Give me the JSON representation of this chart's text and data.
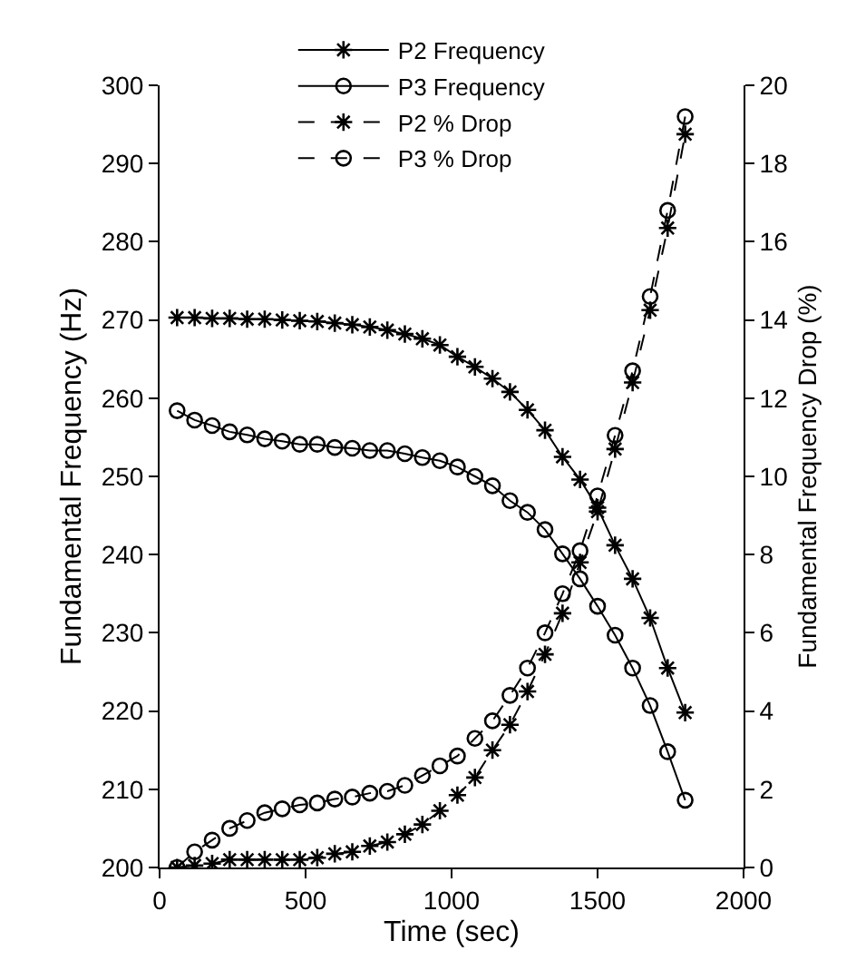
{
  "chart_data": {
    "type": "line",
    "xlabel": "Time (sec)",
    "ylabel": "Fundamental Frequency (Hz)",
    "y2label": "Fundamental Frequency Drop (%)",
    "x": [
      60,
      120,
      180,
      240,
      300,
      360,
      420,
      480,
      540,
      600,
      660,
      720,
      780,
      840,
      900,
      960,
      1020,
      1080,
      1140,
      1200,
      1260,
      1320,
      1380,
      1440,
      1500,
      1560,
      1620,
      1680,
      1740,
      1800
    ],
    "series": [
      {
        "name": "P2 Frequency",
        "color": "#000000",
        "marker": "cross",
        "line_style": "solid",
        "values": [
          270.3,
          270.3,
          270.2,
          270.2,
          270.1,
          270.1,
          270.0,
          269.9,
          269.8,
          269.6,
          269.4,
          269.1,
          268.7,
          268.2,
          267.6,
          266.8,
          265.3,
          264.0,
          262.5,
          260.8,
          258.5,
          255.9,
          252.5,
          249.6,
          246.0,
          241.2,
          236.9,
          231.9,
          225.5,
          219.8
        ]
      },
      {
        "name": "P3 Frequency",
        "color": "#000000",
        "marker": "circle",
        "line_style": "solid",
        "values": [
          258.4,
          257.2,
          256.5,
          255.7,
          255.3,
          254.8,
          254.5,
          254.1,
          254.1,
          253.7,
          253.6,
          253.3,
          253.3,
          252.9,
          252.4,
          252.0,
          251.2,
          250.0,
          248.8,
          246.9,
          245.4,
          243.2,
          240.1,
          236.9,
          233.4,
          229.7,
          225.5,
          220.7,
          214.8,
          208.6
        ]
      },
      {
        "name": "P2 % Drop",
        "color": "#000000",
        "marker": "cross",
        "line_style": "dashed",
        "axis": "y2",
        "values": [
          0,
          0.05,
          0.1,
          0.2,
          0.2,
          0.2,
          0.2,
          0.2,
          0.25,
          0.35,
          0.4,
          0.55,
          0.65,
          0.85,
          1.1,
          1.45,
          1.85,
          2.3,
          3.0,
          3.65,
          4.5,
          5.45,
          6.5,
          7.8,
          9.1,
          10.7,
          12.4,
          14.25,
          16.35,
          18.75
        ]
      },
      {
        "name": "P3 % Drop",
        "color": "#000000",
        "marker": "circle",
        "line_style": "dashed",
        "axis": "y2",
        "values": [
          0,
          0.4,
          0.7,
          1.0,
          1.2,
          1.4,
          1.5,
          1.6,
          1.65,
          1.75,
          1.8,
          1.9,
          1.95,
          2.1,
          2.35,
          2.6,
          2.85,
          3.3,
          3.75,
          4.4,
          5.1,
          6.0,
          7.0,
          8.1,
          9.5,
          11.05,
          12.7,
          14.6,
          16.8,
          19.2
        ]
      }
    ],
    "xlim": [
      0,
      2000
    ],
    "xticks": [
      0,
      500,
      1000,
      1500,
      2000
    ],
    "ylim": [
      200,
      300
    ],
    "yticks": [
      200,
      210,
      220,
      230,
      240,
      250,
      260,
      270,
      280,
      290,
      300
    ],
    "y2lim": [
      0,
      20
    ],
    "y2ticks": [
      0,
      2,
      4,
      6,
      8,
      10,
      12,
      14,
      16,
      18,
      20
    ],
    "legend": "top"
  }
}
